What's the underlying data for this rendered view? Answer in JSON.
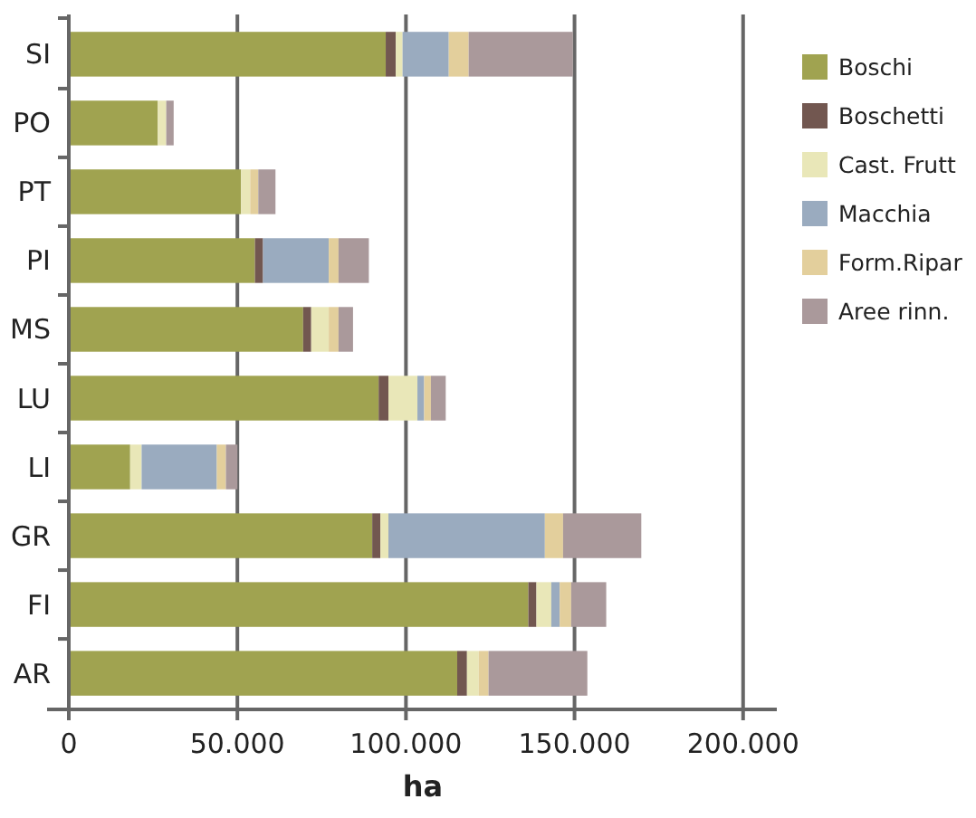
{
  "chart_data": {
    "type": "bar",
    "orientation": "horizontal",
    "stacked": true,
    "xlabel": "ha",
    "categories": [
      "SI",
      "PO",
      "PT",
      "PI",
      "MS",
      "LU",
      "LI",
      "GR",
      "FI",
      "AR"
    ],
    "series": [
      {
        "name": "Boschi",
        "color": "#a0a350",
        "values": [
          94000,
          26400,
          51100,
          55200,
          69500,
          91900,
          18200,
          90000,
          136300,
          115200
        ]
      },
      {
        "name": "Boschetti",
        "color": "#725750",
        "values": [
          3000,
          0,
          0,
          2400,
          2400,
          2900,
          0,
          2400,
          2400,
          2900
        ]
      },
      {
        "name": "Cast. Frutt",
        "color": "#e9e7b8",
        "values": [
          2000,
          2500,
          2700,
          0,
          5200,
          8600,
          3400,
          2400,
          4400,
          3500
        ]
      },
      {
        "name": "Macchia",
        "color": "#9aabbf",
        "values": [
          13700,
          0,
          0,
          19500,
          0,
          2000,
          22300,
          46400,
          2500,
          0
        ]
      },
      {
        "name": "Form.Ripar",
        "color": "#e3cf9c",
        "values": [
          5900,
          0,
          2400,
          2900,
          2900,
          2000,
          2700,
          5400,
          3400,
          2900
        ]
      },
      {
        "name": "Aree rinn.",
        "color": "#aa999b",
        "values": [
          30900,
          2200,
          5100,
          9000,
          4300,
          4400,
          3400,
          23200,
          10400,
          29300
        ]
      }
    ],
    "xlim": [
      0,
      210000
    ],
    "xticks": [
      0,
      {
        "value": 50000,
        "label": "50.000"
      },
      {
        "value": 100000,
        "label": "100.000"
      },
      {
        "value": 150000,
        "label": "150.000"
      },
      {
        "value": 200000,
        "label": "200.000"
      }
    ],
    "grid": "x",
    "legend": "right"
  }
}
